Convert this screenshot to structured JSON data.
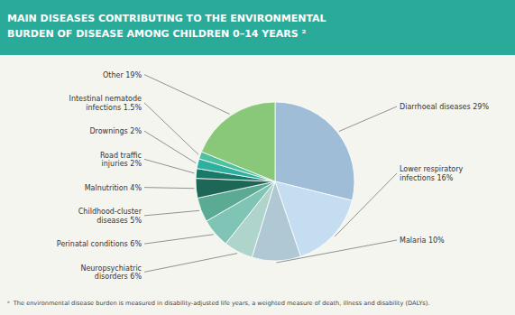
{
  "chart_data": {
    "type": "pie",
    "title": "MAIN DISEASES CONTRIBUTING TO THE ENVIRONMENTAL\nBURDEN OF DISEASE AMONG CHILDREN 0–14 YEARS ²",
    "annotations": [
      "ᵃ  The environmental disease burden is measured in disability-adjusted life years, a weighted measure of death, illness and disability (DALYs)."
    ],
    "categories": [
      "Diarrhoeal diseases 29%",
      "Lower respiratory\ninfections 16%",
      "Malaria 10%",
      "Neuropsychiatric\ndisorders 6%",
      "Perinatal conditions 6%",
      "Childhood-cluster\ndiseases 5%",
      "Malnutrition 4%",
      "Road traffic\ninjuries 2%",
      "Drownings 2%",
      "Intestinal nematode\ninfections 1.5%",
      "Other 19%"
    ],
    "values": [
      29,
      16,
      10,
      6,
      6,
      5,
      4,
      2,
      2,
      1.5,
      19
    ],
    "colors": [
      "#a0bdd8",
      "#c5ddf0",
      "#b0c8d4",
      "#aed4cc",
      "#7fc4b4",
      "#5aaa94",
      "#1e6655",
      "#1a7868",
      "#2db09e",
      "#50c0a0",
      "#88c878"
    ]
  }
}
